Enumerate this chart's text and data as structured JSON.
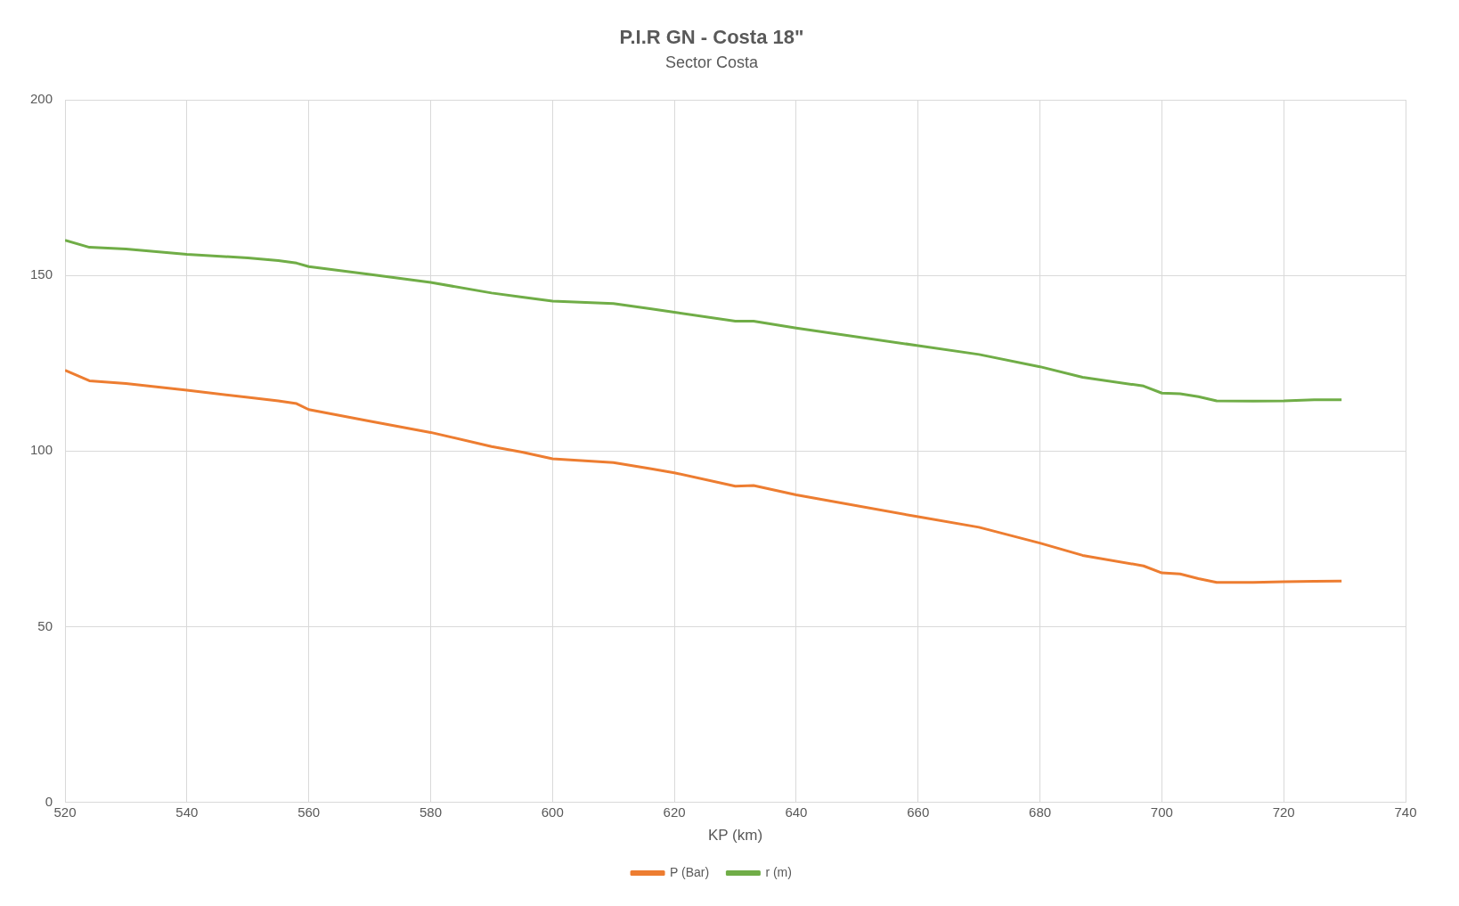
{
  "chart_data": {
    "type": "line",
    "title": "P.I.R GN - Costa 18\"",
    "subtitle": "Sector Costa",
    "xlabel": "KP (km)",
    "xlim": [
      520,
      740
    ],
    "xticks": [
      520,
      540,
      560,
      580,
      600,
      620,
      640,
      660,
      680,
      700,
      720,
      740
    ],
    "ylim": [
      0,
      200
    ],
    "yticks": [
      0,
      50,
      100,
      150,
      200
    ],
    "grid": true,
    "legend": "bottom",
    "marker": "none",
    "x": [
      520,
      524,
      530,
      540,
      550,
      555,
      558,
      560,
      570,
      580,
      590,
      595,
      600,
      610,
      616,
      620,
      630,
      633,
      640,
      660,
      670,
      680,
      687,
      697,
      700,
      703,
      706,
      709,
      715,
      720,
      725,
      729.5
    ],
    "series": [
      {
        "name": "P (Bar)",
        "color": "#ed7d31",
        "values": [
          123,
          120,
          119.2,
          117.3,
          115.3,
          114.3,
          113.5,
          111.8,
          108.5,
          105.3,
          101.3,
          99.7,
          97.8,
          96.7,
          95,
          93.8,
          90,
          90.2,
          87.5,
          81.3,
          78.3,
          73.8,
          70.3,
          67.3,
          65.3,
          65,
          63.7,
          62.6,
          62.6,
          62.8,
          62.9,
          63
        ]
      },
      {
        "name": "r (m)",
        "color": "#70ad47",
        "values": [
          160,
          158,
          157.5,
          156,
          155,
          154.2,
          153.5,
          152.5,
          150.3,
          148,
          145,
          143.8,
          142.7,
          142,
          140.5,
          139.5,
          137,
          137,
          135,
          130,
          127.5,
          124,
          121,
          118.5,
          116.5,
          116.3,
          115.5,
          114.3,
          114.2,
          114.3,
          114.6,
          114.6
        ]
      }
    ]
  }
}
